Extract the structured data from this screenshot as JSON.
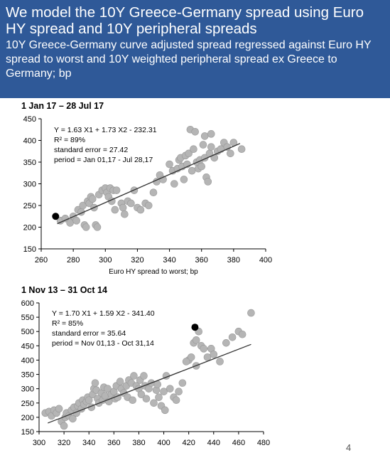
{
  "header": {
    "title": "We model the 10Y Greece-Germany spread using Euro HY spread and 10Y peripheral spreads",
    "subtitle": "10Y Greece-Germany curve adjusted spread regressed against Euro HY spread to worst  and 10Y weighted peripheral spread ex Greece to Germany; bp"
  },
  "page_number": 4,
  "chart_data": [
    {
      "type": "scatter",
      "title": "1 Jan 17 – 28 Jul 17",
      "x_label": "Euro HY spread to worst; bp",
      "annotations": [
        "Y = 1.63 X1 + 1.73 X2 - 232.31",
        "R² = 89%",
        "standard error = 27.42",
        "period = Jan 01,17 - Jul 28,17"
      ],
      "xlim": [
        260,
        400
      ],
      "xticks": [
        260,
        280,
        300,
        320,
        340,
        360,
        380,
        400
      ],
      "ylim": [
        150,
        450
      ],
      "yticks": [
        150,
        200,
        250,
        300,
        350,
        400,
        450
      ],
      "series": [
        {
          "color": "#b5b5b5",
          "x": [
            272,
            275,
            278,
            280,
            282,
            283,
            285,
            286,
            287,
            288,
            289,
            290,
            291,
            292,
            293,
            294,
            295,
            296,
            298,
            300,
            301,
            302,
            303,
            304,
            305,
            306,
            307,
            310,
            311,
            312,
            314,
            316,
            318,
            320,
            322,
            325,
            327,
            330,
            332,
            334,
            336,
            340,
            342,
            343,
            345,
            346,
            347,
            348,
            349,
            350,
            351,
            352,
            353,
            354,
            355,
            356,
            357,
            358,
            359,
            360,
            361,
            362,
            363,
            364,
            365,
            366,
            368,
            370,
            372,
            374,
            376,
            378,
            380,
            385,
            362,
            366
          ],
          "values": [
            215,
            220,
            210,
            225,
            215,
            240,
            235,
            250,
            205,
            200,
            260,
            255,
            270,
            265,
            245,
            205,
            200,
            275,
            285,
            290,
            280,
            270,
            290,
            260,
            285,
            240,
            285,
            255,
            245,
            230,
            260,
            255,
            285,
            245,
            240,
            255,
            250,
            280,
            305,
            320,
            310,
            345,
            330,
            300,
            335,
            355,
            360,
            340,
            310,
            365,
            345,
            370,
            425,
            330,
            380,
            420,
            350,
            335,
            355,
            340,
            390,
            360,
            315,
            305,
            370,
            385,
            360,
            375,
            380,
            395,
            385,
            370,
            395,
            380,
            410,
            415
          ]
        },
        {
          "color": "#000000",
          "x": [
            269
          ],
          "values": [
            225
          ]
        }
      ],
      "fit_line": {
        "x": [
          270,
          384
        ],
        "y": [
          208,
          393
        ]
      }
    },
    {
      "type": "scatter",
      "title": "1 Nov 13 – 31 Oct 14",
      "annotations": [
        "Y = 1.70 X1 + 1.59 X2 - 341.40",
        "R² = 85%",
        "standard error = 35.64",
        "period = Nov 01,13 - Oct 31,14"
      ],
      "xlim": [
        300,
        480
      ],
      "xticks": [
        300,
        320,
        340,
        360,
        380,
        400,
        420,
        440,
        460,
        480
      ],
      "ylim": [
        150,
        600
      ],
      "yticks": [
        150,
        200,
        250,
        300,
        350,
        400,
        450,
        500,
        550,
        600
      ],
      "series": [
        {
          "color": "#b5b5b5",
          "x": [
            305,
            308,
            310,
            312,
            314,
            316,
            318,
            320,
            321,
            322,
            324,
            326,
            327,
            328,
            330,
            331,
            332,
            334,
            335,
            336,
            338,
            339,
            340,
            342,
            343,
            344,
            345,
            346,
            347,
            348,
            350,
            351,
            352,
            353,
            355,
            356,
            358,
            360,
            361,
            362,
            363,
            365,
            366,
            368,
            370,
            371,
            372,
            374,
            375,
            376,
            378,
            380,
            381,
            382,
            384,
            385,
            386,
            388,
            390,
            392,
            394,
            395,
            396,
            398,
            400,
            401,
            402,
            405,
            408,
            410,
            412,
            415,
            420,
            422,
            424,
            426,
            428,
            430,
            432,
            435,
            438,
            440,
            445,
            450,
            455,
            460,
            463,
            470,
            426,
            418
          ],
          "values": [
            215,
            220,
            205,
            225,
            215,
            230,
            185,
            170,
            200,
            215,
            205,
            225,
            195,
            235,
            215,
            240,
            250,
            230,
            260,
            245,
            255,
            270,
            260,
            235,
            280,
            300,
            320,
            295,
            265,
            250,
            285,
            260,
            305,
            275,
            300,
            255,
            280,
            290,
            265,
            310,
            270,
            325,
            300,
            285,
            310,
            270,
            330,
            320,
            260,
            345,
            310,
            300,
            330,
            280,
            345,
            310,
            265,
            300,
            320,
            250,
            295,
            315,
            270,
            240,
            290,
            225,
            345,
            300,
            270,
            260,
            290,
            320,
            400,
            410,
            460,
            470,
            500,
            450,
            440,
            410,
            440,
            420,
            395,
            460,
            480,
            500,
            490,
            565,
            380,
            395
          ]
        },
        {
          "color": "#000000",
          "x": [
            425
          ],
          "values": [
            515
          ]
        }
      ],
      "fit_line": {
        "x": [
          307,
          470
        ],
        "y": [
          180,
          455
        ]
      }
    }
  ]
}
